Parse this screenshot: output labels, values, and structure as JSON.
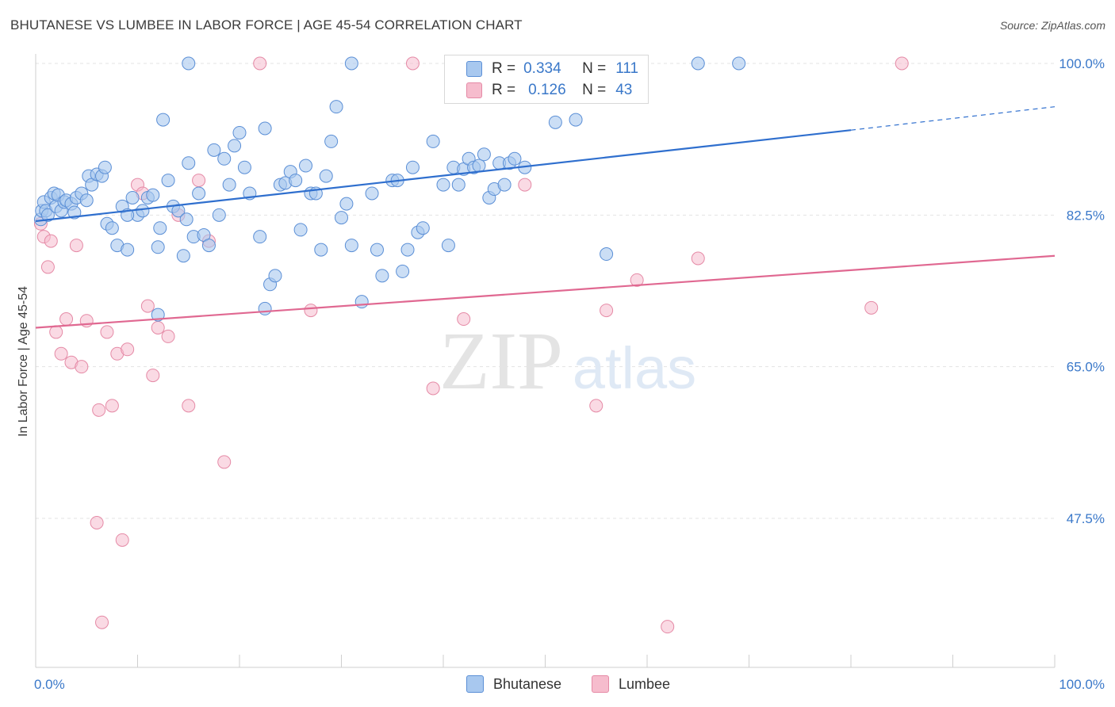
{
  "header": {
    "title": "BHUTANESE VS LUMBEE IN LABOR FORCE | AGE 45-54 CORRELATION CHART",
    "source": "Source: ZipAtlas.com"
  },
  "watermark": {
    "zip": "ZIP",
    "atlas": "atlas"
  },
  "legend_box": {
    "rows": [
      {
        "r_label": "R =",
        "r_value": "0.334",
        "n_label": "N =",
        "n_value": "111"
      },
      {
        "r_label": "R =",
        "r_value": "0.126",
        "n_label": "N =",
        "n_value": "43"
      }
    ]
  },
  "bottom_legend": [
    "Bhutanese",
    "Lumbee"
  ],
  "colors": {
    "blue_fill": "#a8c8ef",
    "blue_stroke": "#5b8fd6",
    "blue_line": "#2f6fce",
    "pink_fill": "#f6bccd",
    "pink_stroke": "#e58aa6",
    "pink_line": "#e06891",
    "tick_label": "#3a78c9",
    "grid": "#e3e3e3"
  },
  "chart_data": {
    "type": "scatter",
    "title": "BHUTANESE VS LUMBEE IN LABOR FORCE | AGE 45-54 CORRELATION CHART",
    "xlabel": "",
    "ylabel": "In Labor Force | Age 45-54",
    "xlim": [
      0,
      100
    ],
    "ylim": [
      33,
      101.5
    ],
    "x_tick_labels": [
      "0.0%",
      "100.0%"
    ],
    "y_ticks": [
      47.5,
      65.0,
      82.5,
      100.0
    ],
    "y_tick_labels": [
      "47.5%",
      "65.0%",
      "82.5%",
      "100.0%"
    ],
    "grid": true,
    "legend_position": "top-center",
    "series": [
      {
        "name": "Bhutanese",
        "stats": {
          "R": 0.334,
          "N": 111
        },
        "trend": {
          "x0": 0,
          "y0": 81.8,
          "x1": 80,
          "y1": 92.3,
          "dashed_to_x": 100,
          "dashed_to_y": 95.0
        },
        "points": [
          [
            0.5,
            82
          ],
          [
            0.6,
            83
          ],
          [
            0.8,
            84
          ],
          [
            1,
            83
          ],
          [
            1.2,
            82.5
          ],
          [
            1.5,
            84.5
          ],
          [
            1.8,
            85
          ],
          [
            2,
            83.5
          ],
          [
            2.2,
            84.8
          ],
          [
            2.5,
            83
          ],
          [
            2.8,
            84
          ],
          [
            3,
            84.2
          ],
          [
            3.5,
            83.8
          ],
          [
            3.8,
            82.8
          ],
          [
            4,
            84.5
          ],
          [
            4.5,
            85
          ],
          [
            5,
            84.2
          ],
          [
            5.2,
            87
          ],
          [
            5.5,
            86
          ],
          [
            6,
            87.2
          ],
          [
            6.5,
            87
          ],
          [
            6.8,
            88
          ],
          [
            7,
            81.5
          ],
          [
            7.5,
            81
          ],
          [
            8,
            79
          ],
          [
            8.5,
            83.5
          ],
          [
            9,
            78.5
          ],
          [
            9.5,
            84.5
          ],
          [
            10,
            82.5
          ],
          [
            10.5,
            83
          ],
          [
            11,
            84.5
          ],
          [
            11.5,
            84.8
          ],
          [
            12,
            78.8
          ],
          [
            12.2,
            81
          ],
          [
            12.5,
            93.5
          ],
          [
            13,
            86.5
          ],
          [
            13.5,
            83.5
          ],
          [
            14,
            83
          ],
          [
            14.5,
            77.8
          ],
          [
            14.8,
            82
          ],
          [
            15,
            88.5
          ],
          [
            15.5,
            80
          ],
          [
            16,
            85
          ],
          [
            16.5,
            80.2
          ],
          [
            17,
            79
          ],
          [
            17.5,
            90
          ],
          [
            18,
            82.5
          ],
          [
            18.5,
            89
          ],
          [
            19,
            86
          ],
          [
            19.5,
            90.5
          ],
          [
            20,
            92
          ],
          [
            20.5,
            88
          ],
          [
            21,
            85
          ],
          [
            22,
            80
          ],
          [
            22.5,
            92.5
          ],
          [
            23,
            74.5
          ],
          [
            23.5,
            75.5
          ],
          [
            24,
            86
          ],
          [
            24.5,
            86.2
          ],
          [
            25,
            87.5
          ],
          [
            25.5,
            86.5
          ],
          [
            26,
            80.8
          ],
          [
            26.5,
            88.2
          ],
          [
            27,
            85
          ],
          [
            27.5,
            85
          ],
          [
            28,
            78.5
          ],
          [
            28.5,
            87
          ],
          [
            29,
            91
          ],
          [
            29.5,
            95
          ],
          [
            30,
            82.2
          ],
          [
            30.5,
            83.8
          ],
          [
            31,
            79
          ],
          [
            32,
            72.5
          ],
          [
            33,
            85
          ],
          [
            33.5,
            78.5
          ],
          [
            34,
            75.5
          ],
          [
            35,
            86.5
          ],
          [
            35.5,
            86.5
          ],
          [
            36,
            76
          ],
          [
            36.5,
            78.5
          ],
          [
            37,
            88
          ],
          [
            37.5,
            80.5
          ],
          [
            38,
            81
          ],
          [
            39,
            91
          ],
          [
            40,
            86
          ],
          [
            40.5,
            79
          ],
          [
            41,
            88
          ],
          [
            41.5,
            86
          ],
          [
            42,
            87.8
          ],
          [
            42.5,
            89
          ],
          [
            43,
            88
          ],
          [
            43.5,
            88.2
          ],
          [
            44,
            89.5
          ],
          [
            44.5,
            84.5
          ],
          [
            45,
            85.5
          ],
          [
            45.5,
            88.5
          ],
          [
            46,
            86
          ],
          [
            46.5,
            88.5
          ],
          [
            47,
            89
          ],
          [
            48,
            88
          ],
          [
            51,
            93.2
          ],
          [
            53,
            93.5
          ],
          [
            56,
            78
          ],
          [
            65,
            100
          ],
          [
            69,
            100
          ],
          [
            15,
            100
          ],
          [
            31,
            100
          ],
          [
            47,
            100
          ],
          [
            22.5,
            71.7
          ],
          [
            12,
            71
          ],
          [
            9,
            82.5
          ]
        ]
      },
      {
        "name": "Lumbee",
        "stats": {
          "R": 0.126,
          "N": 43
        },
        "trend": {
          "x0": 0,
          "y0": 69.5,
          "x1": 100,
          "y1": 77.8
        },
        "points": [
          [
            0.5,
            81.5
          ],
          [
            0.8,
            80
          ],
          [
            1.2,
            76.5
          ],
          [
            1.5,
            79.5
          ],
          [
            2,
            69
          ],
          [
            2.5,
            66.5
          ],
          [
            3,
            70.5
          ],
          [
            3.5,
            65.5
          ],
          [
            4,
            79
          ],
          [
            4.5,
            65
          ],
          [
            5,
            70.3
          ],
          [
            6,
            47
          ],
          [
            6.2,
            60
          ],
          [
            6.5,
            35.5
          ],
          [
            7,
            69
          ],
          [
            7.5,
            60.5
          ],
          [
            8,
            66.5
          ],
          [
            8.5,
            45
          ],
          [
            9,
            67
          ],
          [
            10,
            86
          ],
          [
            10.5,
            85
          ],
          [
            11,
            72
          ],
          [
            11.5,
            64
          ],
          [
            12,
            69.5
          ],
          [
            13,
            68.5
          ],
          [
            14,
            82.5
          ],
          [
            15,
            60.5
          ],
          [
            16,
            86.5
          ],
          [
            17,
            79.5
          ],
          [
            18.5,
            54
          ],
          [
            22,
            100
          ],
          [
            27,
            71.5
          ],
          [
            37,
            100
          ],
          [
            39,
            62.5
          ],
          [
            42,
            70.5
          ],
          [
            48,
            86
          ],
          [
            55,
            60.5
          ],
          [
            56,
            71.5
          ],
          [
            59,
            75
          ],
          [
            62,
            35
          ],
          [
            65,
            77.5
          ],
          [
            82,
            71.8
          ],
          [
            85,
            100
          ]
        ]
      }
    ]
  }
}
